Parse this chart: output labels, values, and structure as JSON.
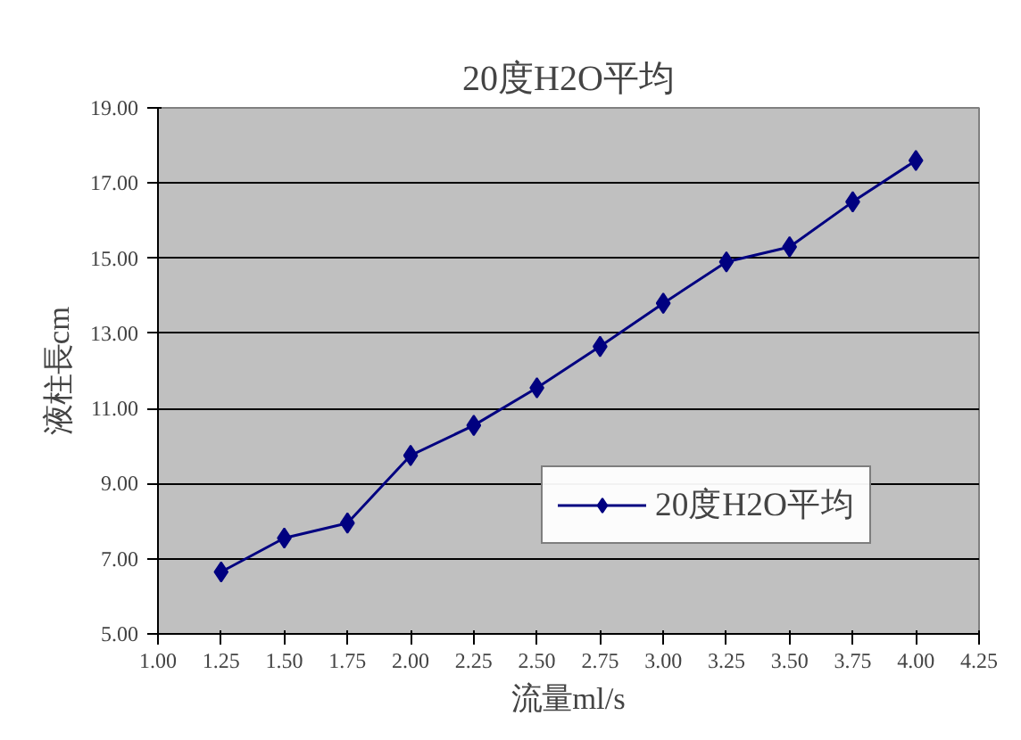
{
  "chart_data": {
    "type": "line",
    "title": "20度H2O平均",
    "xlabel": "流量ml/s",
    "ylabel": "液柱長cm",
    "x": [
      1.25,
      1.5,
      1.75,
      2.0,
      2.25,
      2.5,
      2.75,
      3.0,
      3.25,
      3.5,
      3.75,
      4.0
    ],
    "series": [
      {
        "name": "20度H2O平均",
        "color": "#000080",
        "values": [
          6.65,
          7.55,
          7.95,
          9.75,
          10.55,
          11.55,
          12.65,
          13.8,
          14.9,
          15.3,
          16.5,
          17.6
        ]
      }
    ],
    "xlim": [
      1.0,
      4.25
    ],
    "xticks": [
      {
        "value": 1.0,
        "label": "1.00"
      },
      {
        "value": 1.25,
        "label": "1.25"
      },
      {
        "value": 1.5,
        "label": "1.50"
      },
      {
        "value": 1.75,
        "label": "1.75"
      },
      {
        "value": 2.0,
        "label": "2.00"
      },
      {
        "value": 2.25,
        "label": "2.25"
      },
      {
        "value": 2.5,
        "label": "2.50"
      },
      {
        "value": 2.75,
        "label": "2.75"
      },
      {
        "value": 3.0,
        "label": "3.00"
      },
      {
        "value": 3.25,
        "label": "3.25"
      },
      {
        "value": 3.5,
        "label": "3.50"
      },
      {
        "value": 3.75,
        "label": "3.75"
      },
      {
        "value": 4.0,
        "label": "4.00"
      },
      {
        "value": 4.25,
        "label": "4.25"
      }
    ],
    "ylim": [
      5.0,
      19.0
    ],
    "yticks": [
      {
        "value": 5.0,
        "label": "5.00"
      },
      {
        "value": 7.0,
        "label": "7.00"
      },
      {
        "value": 9.0,
        "label": "9.00"
      },
      {
        "value": 11.0,
        "label": "11.00"
      },
      {
        "value": 13.0,
        "label": "13.00"
      },
      {
        "value": 15.0,
        "label": "15.00"
      },
      {
        "value": 17.0,
        "label": "17.00"
      },
      {
        "value": 19.0,
        "label": "19.00"
      }
    ],
    "grid": "y",
    "legend": "right",
    "marker": "diamond",
    "line_style": "solid"
  }
}
